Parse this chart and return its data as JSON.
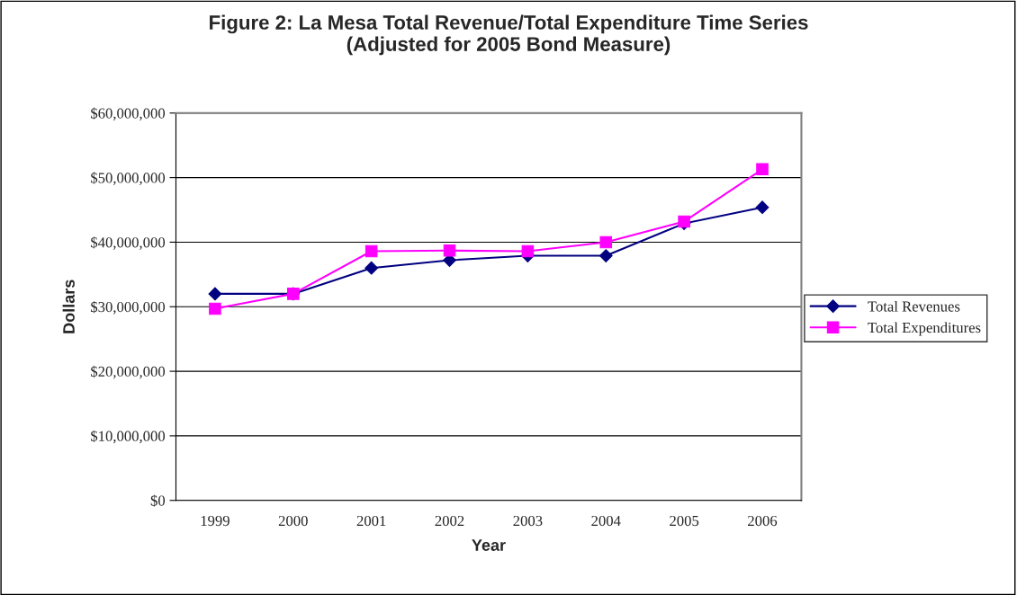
{
  "chart_data": {
    "type": "line",
    "title": "Figure 2: La Mesa Total Revenue/Total Expenditure Time Series\n(Adjusted for 2005 Bond Measure)",
    "xlabel": "Year",
    "ylabel": "Dollars",
    "categories": [
      "1999",
      "2000",
      "2001",
      "2002",
      "2003",
      "2004",
      "2005",
      "2006"
    ],
    "series": [
      {
        "name": "Total Revenues",
        "color": "#000080",
        "marker": "diamond",
        "values": [
          32000000,
          32000000,
          36000000,
          37200000,
          37900000,
          37900000,
          42900000,
          45400000
        ]
      },
      {
        "name": "Total Expenditures",
        "color": "#ff00ff",
        "marker": "square",
        "values": [
          29700000,
          32000000,
          38600000,
          38700000,
          38600000,
          40000000,
          43200000,
          51300000
        ]
      }
    ],
    "ylim": [
      0,
      60000000
    ],
    "yticks": [
      {
        "value": 0,
        "label": "$0"
      },
      {
        "value": 10000000,
        "label": "$10,000,000"
      },
      {
        "value": 20000000,
        "label": "$20,000,000"
      },
      {
        "value": 30000000,
        "label": "$30,000,000"
      },
      {
        "value": 40000000,
        "label": "$40,000,000"
      },
      {
        "value": 50000000,
        "label": "$50,000,000"
      },
      {
        "value": 60000000,
        "label": "$60,000,000"
      }
    ],
    "grid": "y",
    "legend": "right",
    "line_style": "solid"
  }
}
